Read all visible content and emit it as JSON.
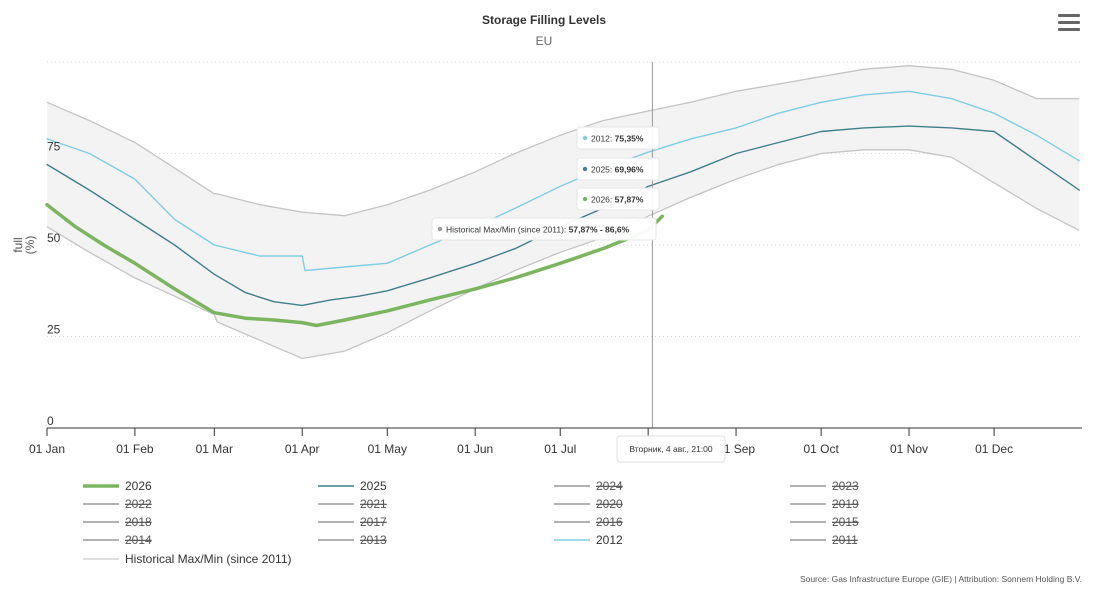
{
  "chart_data": {
    "type": "area",
    "title": "Storage Filling Levels",
    "subtitle": "EU",
    "ylabel": "full\n(%)",
    "ylim": [
      0,
      100
    ],
    "yticks": [
      0,
      25,
      50,
      75
    ],
    "months": [
      "01 Jan",
      "01 Feb",
      "01 Mar",
      "01 Apr",
      "01 May",
      "01 Jun",
      "01 Jul",
      "01 Aug",
      "01 Sep",
      "01 Oct",
      "01 Nov",
      "01 Dec"
    ],
    "crosshair_date": "2026-08-04",
    "band": {
      "name": "Historical Max/Min (since 2011)",
      "days": [
        0,
        15,
        31,
        45,
        59,
        60,
        75,
        90,
        105,
        120,
        135,
        151,
        165,
        181,
        196,
        212,
        227,
        243,
        258,
        273,
        288,
        304,
        319,
        334,
        349,
        364
      ],
      "max": [
        89,
        84,
        78,
        71,
        64,
        64,
        61,
        59,
        58,
        61,
        65,
        70,
        75,
        80,
        84,
        86.6,
        89,
        92,
        94,
        96,
        98,
        99,
        98,
        95,
        90,
        90
      ],
      "min": [
        55,
        48,
        41,
        36,
        31,
        29,
        24,
        19,
        21,
        26,
        32,
        38,
        43,
        48,
        52,
        57.87,
        63,
        68,
        72,
        75,
        76,
        76,
        74,
        67,
        60,
        54
      ]
    },
    "series": [
      {
        "name": "2026",
        "color": "#7cb560",
        "width": 3.5,
        "days": [
          0,
          10,
          20,
          31,
          45,
          59,
          70,
          80,
          90,
          95,
          105,
          120,
          135,
          151,
          165,
          181,
          196,
          212,
          217
        ],
        "values": [
          61,
          55,
          50,
          45,
          38,
          31.5,
          30,
          29.5,
          28.8,
          28,
          29.5,
          32,
          35,
          38,
          41,
          45,
          49,
          54,
          57.87
        ]
      },
      {
        "name": "2025",
        "color": "#3f7f8a",
        "width": 1.4,
        "days": [
          0,
          15,
          31,
          45,
          59,
          70,
          80,
          90,
          100,
          110,
          120,
          135,
          151,
          165,
          181,
          196,
          212,
          227,
          243,
          258,
          273,
          288,
          304,
          319,
          334,
          349,
          364
        ],
        "values": [
          72,
          65,
          57,
          50,
          42,
          37,
          34.5,
          33.5,
          35,
          36,
          37.5,
          41,
          45,
          49,
          55,
          60,
          66,
          70,
          75,
          78,
          81,
          82,
          82.5,
          82,
          81,
          73,
          65
        ]
      },
      {
        "name": "2012",
        "color": "#7dcee4",
        "width": 1.4,
        "days": [
          0,
          15,
          31,
          45,
          59,
          75,
          90,
          91,
          105,
          120,
          135,
          151,
          165,
          181,
          196,
          212,
          227,
          243,
          258,
          273,
          288,
          304,
          319,
          334,
          349,
          364
        ],
        "values": [
          79,
          75,
          68,
          57,
          50,
          47,
          47,
          43,
          44,
          45,
          50,
          55,
          60,
          66,
          71,
          75.35,
          79,
          82,
          86,
          89,
          91,
          92,
          90,
          86,
          80,
          73
        ]
      }
    ],
    "tooltip": {
      "items": [
        {
          "label": "2012",
          "value": "75,35%",
          "color": "#7dcee4"
        },
        {
          "label": "2025",
          "value": "69,96%",
          "color": "#3f7f8a"
        },
        {
          "label": "2026",
          "value": "57,87%",
          "color": "#7cb560"
        },
        {
          "label": "Historical Max/Min (since 2011)",
          "value": "57,87% - 86,6%",
          "color": "#999999"
        }
      ],
      "date_label": "Вторник, 4 авг., 21:00"
    },
    "legend": [
      {
        "label": "2026",
        "color": "#7cb560",
        "visible": true,
        "thick": true
      },
      {
        "label": "2025",
        "color": "#3f7f8a",
        "visible": true
      },
      {
        "label": "2024",
        "color": "#999999",
        "visible": false
      },
      {
        "label": "2023",
        "color": "#999999",
        "visible": false
      },
      {
        "label": "2022",
        "color": "#999999",
        "visible": false
      },
      {
        "label": "2021",
        "color": "#999999",
        "visible": false
      },
      {
        "label": "2020",
        "color": "#999999",
        "visible": false
      },
      {
        "label": "2019",
        "color": "#999999",
        "visible": false
      },
      {
        "label": "2018",
        "color": "#999999",
        "visible": false
      },
      {
        "label": "2017",
        "color": "#999999",
        "visible": false
      },
      {
        "label": "2016",
        "color": "#999999",
        "visible": false
      },
      {
        "label": "2015",
        "color": "#999999",
        "visible": false
      },
      {
        "label": "2014",
        "color": "#999999",
        "visible": false
      },
      {
        "label": "2013",
        "color": "#999999",
        "visible": false
      },
      {
        "label": "2012",
        "color": "#7dcee4",
        "visible": true
      },
      {
        "label": "2011",
        "color": "#999999",
        "visible": false
      },
      {
        "label": "Historical Max/Min (since 2011)",
        "color": "#cccccc",
        "visible": true,
        "band": true
      }
    ],
    "source": "Source: Gas Infrastructure Europe (GIE) | Attribution: Sonnem Holding B.V."
  },
  "menu_icon": "hamburger-menu-icon"
}
